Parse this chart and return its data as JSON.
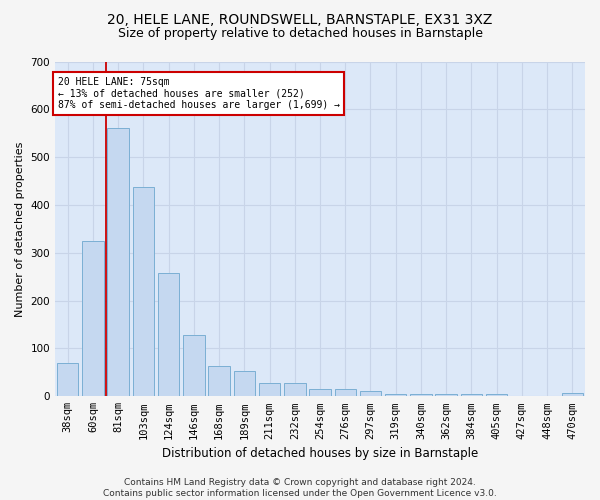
{
  "title1": "20, HELE LANE, ROUNDSWELL, BARNSTAPLE, EX31 3XZ",
  "title2": "Size of property relative to detached houses in Barnstaple",
  "xlabel": "Distribution of detached houses by size in Barnstaple",
  "ylabel": "Number of detached properties",
  "bar_labels": [
    "38sqm",
    "60sqm",
    "81sqm",
    "103sqm",
    "124sqm",
    "146sqm",
    "168sqm",
    "189sqm",
    "211sqm",
    "232sqm",
    "254sqm",
    "276sqm",
    "297sqm",
    "319sqm",
    "340sqm",
    "362sqm",
    "384sqm",
    "405sqm",
    "427sqm",
    "448sqm",
    "470sqm"
  ],
  "bar_values": [
    70,
    325,
    560,
    438,
    258,
    128,
    63,
    53,
    28,
    28,
    15,
    15,
    11,
    4,
    4,
    4,
    4,
    4,
    0,
    0,
    7
  ],
  "bar_color": "#c5d8f0",
  "bar_edge_color": "#7bafd4",
  "vline_x": 1.5,
  "annotation_line1": "20 HELE LANE: 75sqm",
  "annotation_line2": "← 13% of detached houses are smaller (252)",
  "annotation_line3": "87% of semi-detached houses are larger (1,699) →",
  "annotation_box_color": "#ffffff",
  "annotation_border_color": "#cc0000",
  "ylim": [
    0,
    700
  ],
  "yticks": [
    0,
    100,
    200,
    300,
    400,
    500,
    600,
    700
  ],
  "grid_color": "#c8d4e8",
  "plot_bg_color": "#dce8f8",
  "fig_bg_color": "#f5f5f5",
  "vline_color": "#cc0000",
  "title1_fontsize": 10,
  "title2_fontsize": 9,
  "xlabel_fontsize": 8.5,
  "ylabel_fontsize": 8,
  "tick_fontsize": 7.5,
  "footer_text": "Contains HM Land Registry data © Crown copyright and database right 2024.\nContains public sector information licensed under the Open Government Licence v3.0.",
  "footer_fontsize": 6.5
}
